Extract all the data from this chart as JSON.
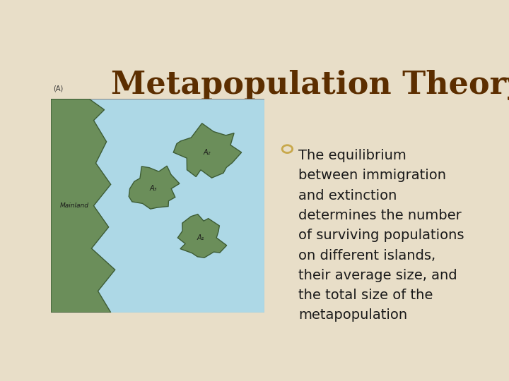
{
  "title": "Metapopulation Theory",
  "title_color": "#5C2E00",
  "title_fontsize": 32,
  "bg_color": "#E8DEC8",
  "bullet_lines": [
    "The equilibrium",
    "between immigration",
    "and extinction",
    "determines the number",
    "of surviving populations",
    "on different islands,",
    "their average size, and",
    "the total size of the",
    "metapopulation"
  ],
  "bullet_color": "#1a1a1a",
  "bullet_fontsize": 14,
  "ocean_color": "#ADD8E6",
  "land_color": "#6B8E5A",
  "land_edge_color": "#3d5c35",
  "mainland_label": "Mainland",
  "island_labels": [
    "A₃",
    "A₂",
    "A₁"
  ],
  "caption": "(A)",
  "bullet_circle_color": "#C8A84B"
}
